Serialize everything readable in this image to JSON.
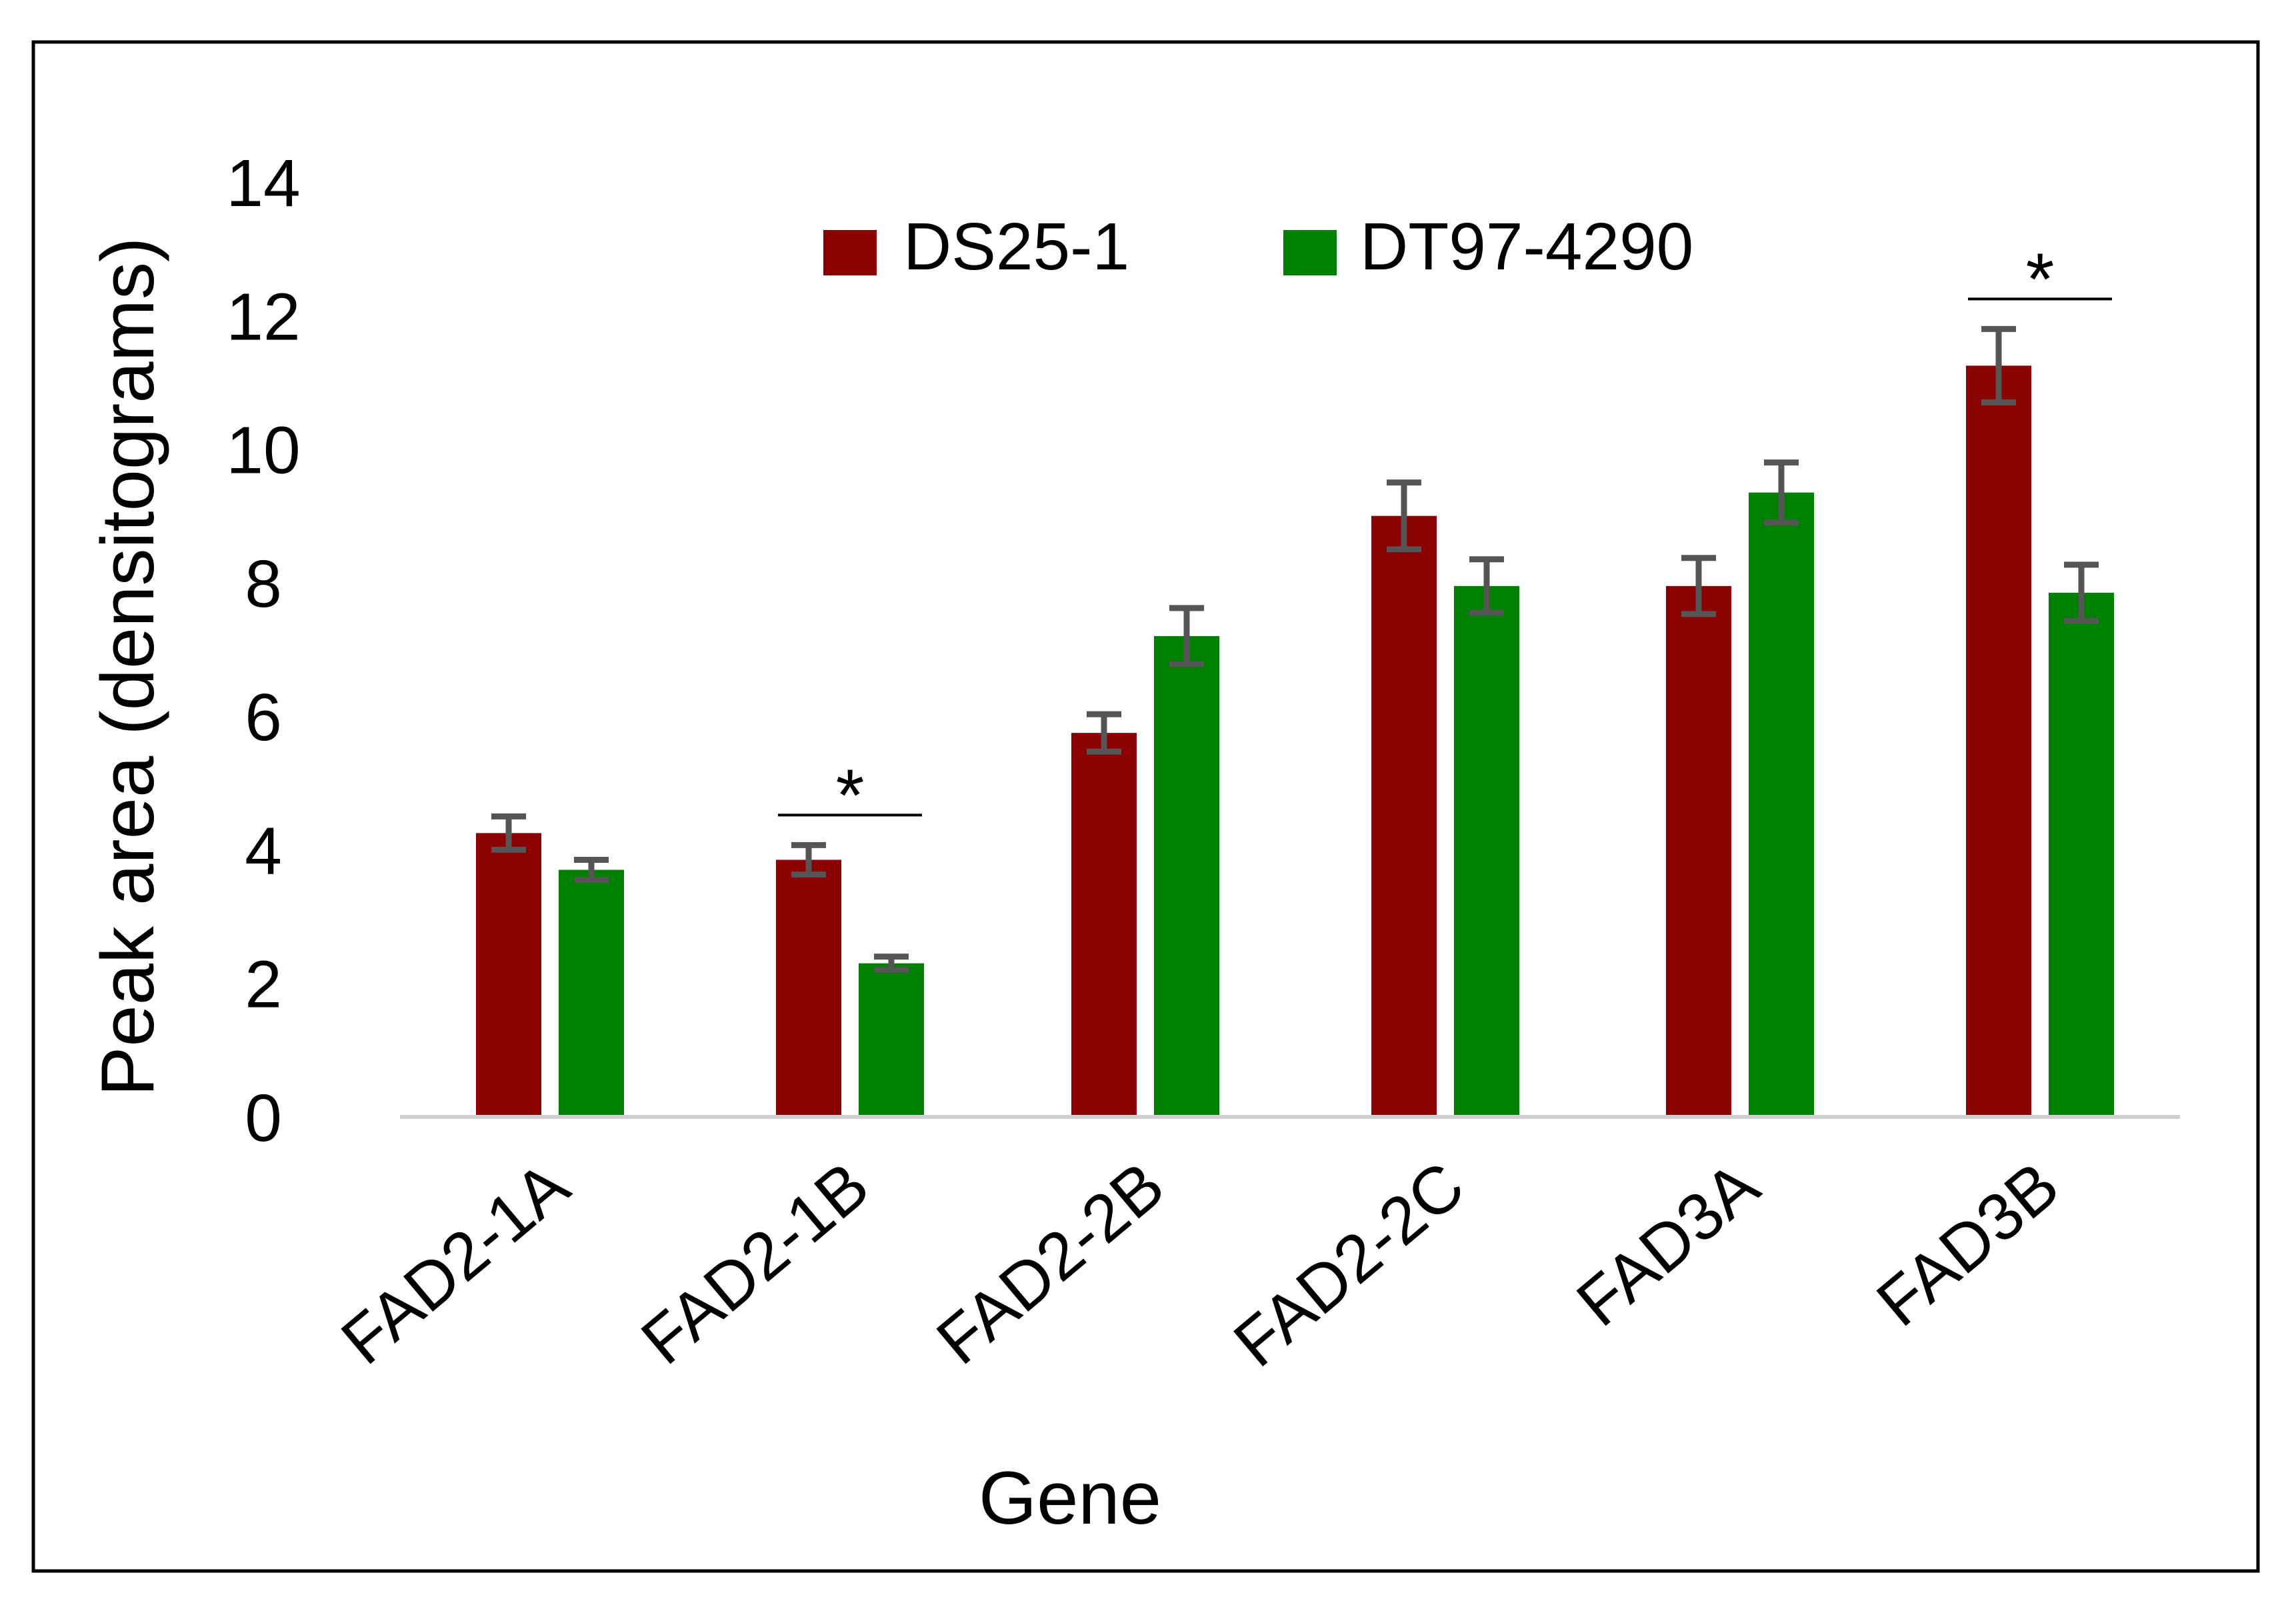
{
  "chart_data": {
    "type": "bar",
    "title": "",
    "xlabel": "Gene",
    "ylabel": "Peak area (densitograms)",
    "ylim": [
      0,
      14
    ],
    "yticks": [
      "0",
      "2",
      "4",
      "6",
      "8",
      "10",
      "12",
      "14"
    ],
    "ytick_values": [
      0,
      2,
      4,
      6,
      8,
      10,
      12,
      14
    ],
    "categories": [
      "FAD2-1A",
      "FAD2-1B",
      "FAD2-2B",
      "FAD2-2C",
      "FAD3A",
      "FAD3B"
    ],
    "series": [
      {
        "name": "DS25-1",
        "color": "#8B0000",
        "values": [
          4.25,
          3.85,
          5.75,
          9.0,
          7.95,
          11.25
        ],
        "errors": [
          0.25,
          0.22,
          0.28,
          0.5,
          0.42,
          0.55
        ]
      },
      {
        "name": "DT97-4290",
        "color": "#008000",
        "values": [
          3.7,
          2.3,
          7.2,
          7.95,
          9.35,
          7.85
        ],
        "errors": [
          0.15,
          0.1,
          0.42,
          0.4,
          0.45,
          0.42
        ]
      }
    ],
    "legend_position": "top-center",
    "significance": [
      {
        "category": "FAD2-1B",
        "label": "*"
      },
      {
        "category": "FAD3B",
        "label": "*"
      }
    ],
    "grid": false,
    "error_bar_color": "#555555"
  }
}
